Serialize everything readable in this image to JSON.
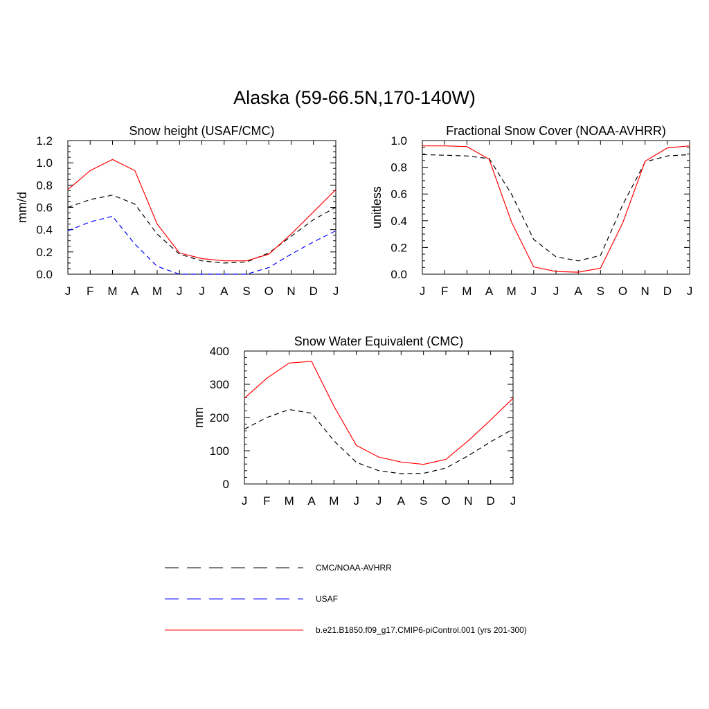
{
  "main_title": "Alaska (59-66.5N,170-140W)",
  "months": [
    "J",
    "F",
    "M",
    "A",
    "M",
    "J",
    "J",
    "A",
    "S",
    "O",
    "N",
    "D",
    "J"
  ],
  "legend": [
    {
      "label": "CMC/NOAA-AVHRR",
      "color": "#000000",
      "dash": "dashed"
    },
    {
      "label": "USAF",
      "color": "#0000ff",
      "dash": "dashed"
    },
    {
      "label": "b.e21.B1850.f09_g17.CMIP6-piControl.001 (yrs 201-300)",
      "color": "#ff0000",
      "dash": "solid"
    }
  ],
  "chart_data": [
    {
      "type": "line",
      "title": "Snow height (USAF/CMC)",
      "ylabel": "mm/d",
      "ylim": [
        0,
        1.2
      ],
      "yticks": [
        "0.0",
        "0.2",
        "0.4",
        "0.6",
        "0.8",
        "1.0",
        "1.2"
      ],
      "series": [
        {
          "name": "CMC/NOAA-AVHRR",
          "color": "#000000",
          "dash": "dashed",
          "values": [
            0.6,
            0.67,
            0.71,
            0.63,
            0.36,
            0.18,
            0.12,
            0.1,
            0.11,
            0.19,
            0.34,
            0.49,
            0.6
          ]
        },
        {
          "name": "USAF",
          "color": "#0000ff",
          "dash": "dashed",
          "values": [
            0.39,
            0.47,
            0.52,
            0.27,
            0.07,
            0.0,
            0.0,
            0.0,
            0.0,
            0.06,
            0.18,
            0.29,
            0.39
          ]
        },
        {
          "name": "b.e21.B1850.f09_g17.CMIP6-piControl.001 (yrs 201-300)",
          "color": "#ff0000",
          "dash": "solid",
          "values": [
            0.76,
            0.93,
            1.03,
            0.93,
            0.45,
            0.19,
            0.14,
            0.12,
            0.12,
            0.18,
            0.36,
            0.56,
            0.76
          ]
        }
      ]
    },
    {
      "type": "line",
      "title": "Fractional Snow Cover (NOAA-AVHRR)",
      "ylabel": "unitless",
      "ylim": [
        0,
        1.0
      ],
      "yticks": [
        "0.0",
        "0.2",
        "0.4",
        "0.6",
        "0.8",
        "1.0"
      ],
      "series": [
        {
          "name": "CMC/NOAA-AVHRR",
          "color": "#000000",
          "dash": "dashed",
          "values": [
            0.895,
            0.89,
            0.885,
            0.865,
            0.6,
            0.26,
            0.13,
            0.1,
            0.14,
            0.52,
            0.84,
            0.885,
            0.895
          ]
        },
        {
          "name": "b.e21.B1850.f09_g17.CMIP6-piControl.001 (yrs 201-300)",
          "color": "#ff0000",
          "dash": "solid",
          "values": [
            0.96,
            0.96,
            0.955,
            0.86,
            0.39,
            0.055,
            0.02,
            0.015,
            0.045,
            0.385,
            0.845,
            0.945,
            0.96
          ]
        }
      ]
    },
    {
      "type": "line",
      "title": "Snow Water Equivalent (CMC)",
      "ylabel": "mm",
      "ylim": [
        0,
        400
      ],
      "yticks": [
        "0",
        "100",
        "200",
        "300",
        "400"
      ],
      "series": [
        {
          "name": "CMC/NOAA-AVHRR",
          "color": "#000000",
          "dash": "dashed",
          "values": [
            165,
            200,
            224,
            213,
            130,
            65,
            40,
            31,
            32,
            48,
            85,
            127,
            165
          ]
        },
        {
          "name": "b.e21.B1850.f09_g17.CMIP6-piControl.001 (yrs 201-300)",
          "color": "#ff0000",
          "dash": "solid",
          "values": [
            258,
            318,
            364,
            369,
            234,
            116,
            81,
            66,
            59,
            74,
            130,
            193,
            258
          ]
        }
      ]
    }
  ]
}
